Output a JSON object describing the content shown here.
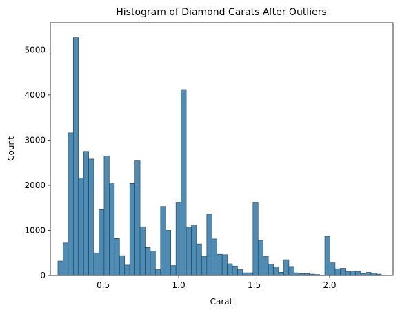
{
  "chart_data": {
    "type": "bar",
    "title": "Histogram of Diamond Carats After Outliers",
    "xlabel": "Carat",
    "ylabel": "Count",
    "xlim": [
      0.15,
      2.42
    ],
    "ylim": [
      0,
      5600
    ],
    "xticks": [
      0.5,
      1.0,
      1.5,
      2.0
    ],
    "xtick_labels": [
      "0.5",
      "1.0",
      "1.5",
      "2.0"
    ],
    "yticks": [
      0,
      1000,
      2000,
      3000,
      4000,
      5000
    ],
    "ytick_labels": [
      "0",
      "1000",
      "2000",
      "3000",
      "4000",
      "5000"
    ],
    "grid": false,
    "bar_color": "#4c8cb5",
    "bar_edge_color": "#2a3a48",
    "bin_start": 0.2,
    "bin_width": 0.034,
    "values": [
      320,
      720,
      3160,
      5270,
      2160,
      2750,
      2580,
      500,
      1460,
      2650,
      2050,
      820,
      440,
      230,
      2040,
      2540,
      1080,
      620,
      540,
      130,
      1530,
      1000,
      220,
      1610,
      4120,
      1070,
      1120,
      700,
      420,
      1360,
      810,
      470,
      460,
      260,
      210,
      130,
      60,
      60,
      1620,
      780,
      420,
      250,
      190,
      70,
      350,
      200,
      60,
      40,
      40,
      30,
      20,
      10,
      870,
      280,
      150,
      160,
      90,
      100,
      90,
      40,
      70,
      50,
      30
    ]
  }
}
